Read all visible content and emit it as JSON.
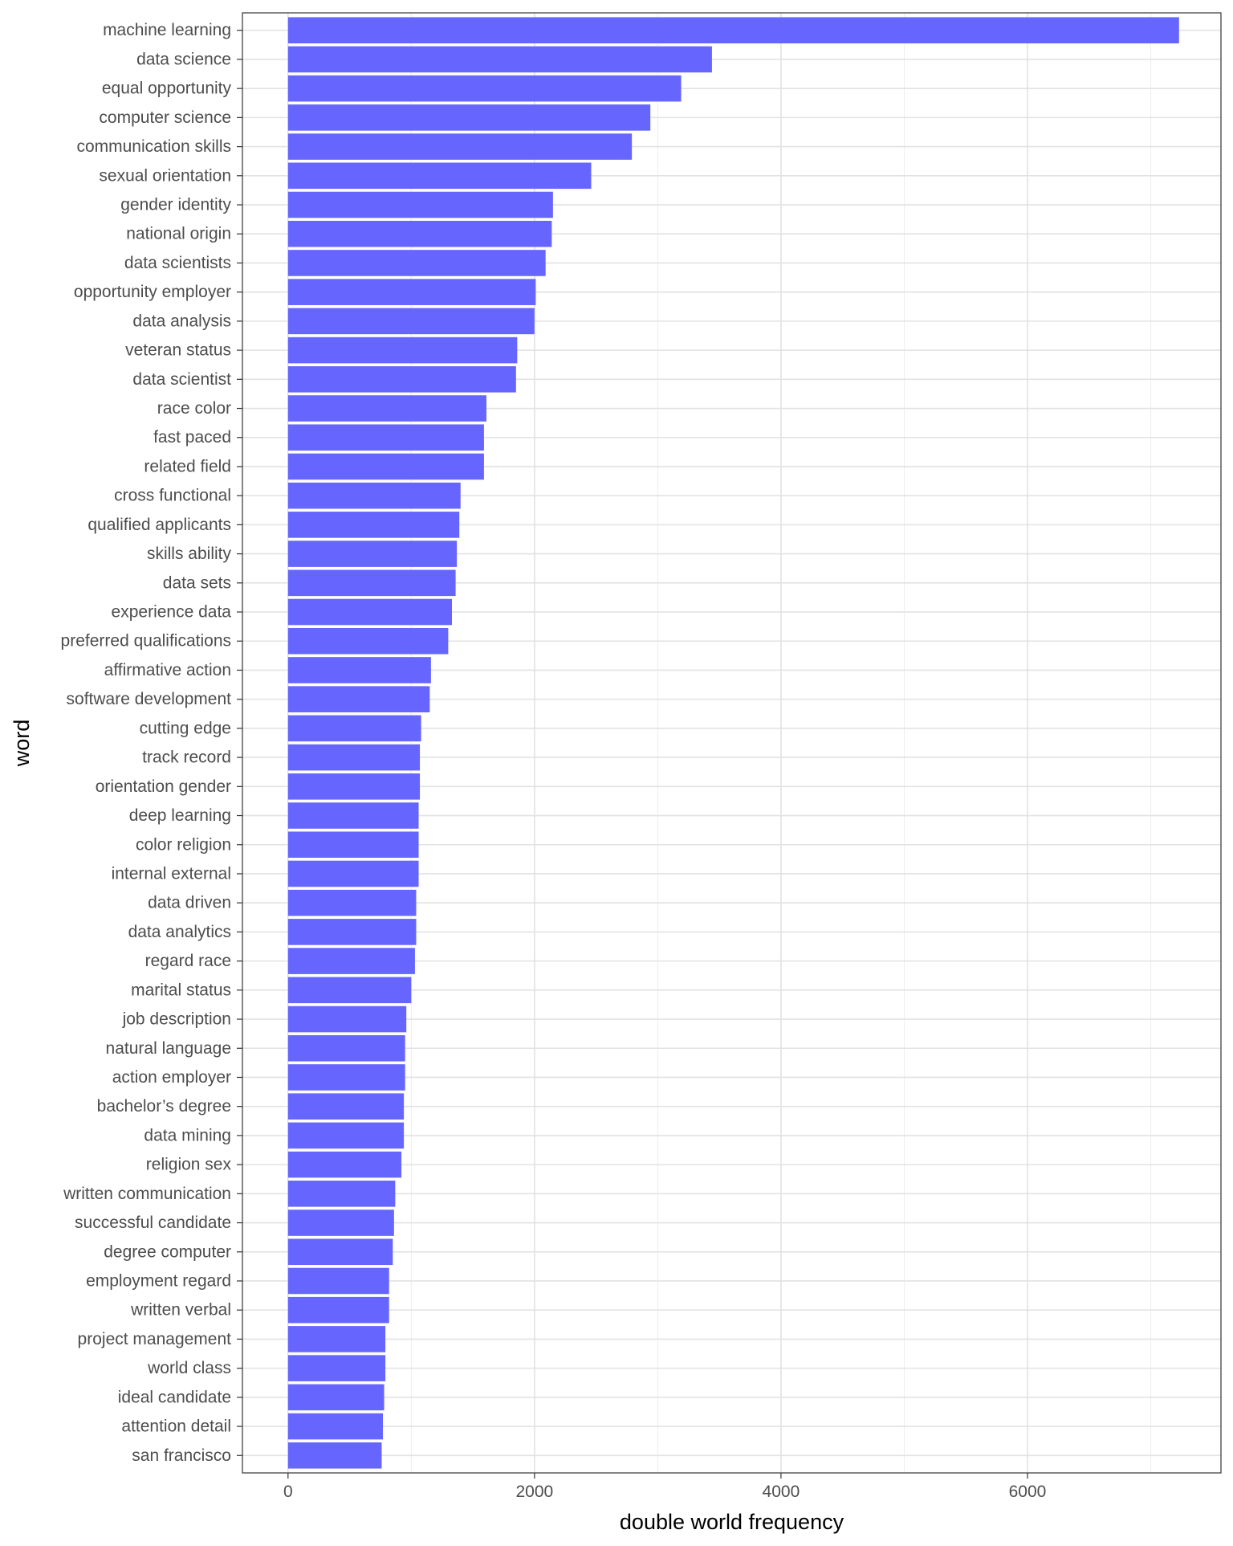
{
  "chart_data": {
    "type": "bar",
    "orientation": "horizontal",
    "xlabel": "double world frequency",
    "ylabel": "word",
    "xlim": [
      -370,
      7570
    ],
    "xticks": [
      0,
      2000,
      4000,
      6000
    ],
    "grid": true,
    "bar_color": "#6666ff",
    "categories": [
      "machine learning",
      "data science",
      "equal opportunity",
      "computer science",
      "communication skills",
      "sexual orientation",
      "gender identity",
      "national origin",
      "data scientists",
      "opportunity employer",
      "data analysis",
      "veteran status",
      "data scientist",
      "race color",
      "fast paced",
      "related field",
      "cross functional",
      "qualified applicants",
      "skills ability",
      "data sets",
      "experience data",
      "preferred qualifications",
      "affirmative action",
      "software development",
      "cutting edge",
      "track record",
      "orientation gender",
      "deep learning",
      "color religion",
      "internal external",
      "data driven",
      "data analytics",
      "regard race",
      "marital status",
      "job description",
      "natural language",
      "action employer",
      "bachelor’s degree",
      "data mining",
      "religion sex",
      "written communication",
      "successful candidate",
      "degree computer",
      "employment regard",
      "written verbal",
      "project management",
      "world class",
      "ideal candidate",
      "attention detail",
      "san francisco"
    ],
    "values": [
      7230,
      3440,
      3190,
      2940,
      2790,
      2460,
      2150,
      2140,
      2090,
      2010,
      2000,
      1860,
      1850,
      1610,
      1590,
      1590,
      1400,
      1390,
      1370,
      1360,
      1330,
      1300,
      1160,
      1150,
      1080,
      1070,
      1070,
      1060,
      1060,
      1060,
      1040,
      1040,
      1030,
      1000,
      960,
      950,
      950,
      940,
      940,
      920,
      870,
      860,
      850,
      820,
      820,
      790,
      790,
      780,
      770,
      760
    ]
  }
}
